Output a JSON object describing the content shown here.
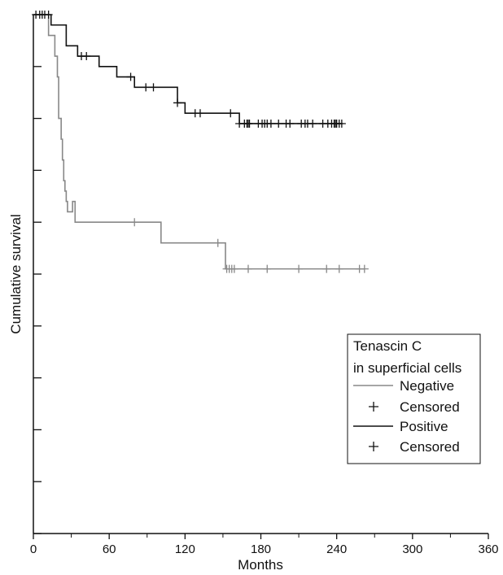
{
  "chart_data": {
    "type": "line",
    "subtype": "kaplan-meier",
    "xlabel": "Months",
    "ylabel": "Cumulative survival",
    "xlim": [
      0,
      360
    ],
    "ylim": [
      0,
      1.0
    ],
    "x_ticks": [
      0,
      60,
      120,
      180,
      240,
      300,
      360
    ],
    "y_ticks": [
      0,
      0.1,
      0.2,
      0.3,
      0.4,
      0.5,
      0.6,
      0.7,
      0.8,
      0.9,
      1.0
    ],
    "y_tick_labels_shown": false,
    "legend": {
      "title_line1": "Tenascin C",
      "title_line2": "in superficial cells",
      "position": "right",
      "entries": [
        {
          "label": "Negative",
          "kind": "line",
          "series": 0
        },
        {
          "label": "Censored",
          "kind": "censor",
          "series": 0
        },
        {
          "label": "Positive",
          "kind": "line",
          "series": 1
        },
        {
          "label": "Censored",
          "kind": "censor",
          "series": 1
        }
      ]
    },
    "series": [
      {
        "name": "Negative",
        "color": "#888888",
        "steps": [
          [
            0,
            1.0
          ],
          [
            12,
            0.96
          ],
          [
            17,
            0.92
          ],
          [
            19,
            0.88
          ],
          [
            20,
            0.8
          ],
          [
            22,
            0.76
          ],
          [
            23,
            0.72
          ],
          [
            24,
            0.68
          ],
          [
            25,
            0.66
          ],
          [
            26,
            0.64
          ],
          [
            27,
            0.62
          ],
          [
            31,
            0.64
          ],
          [
            33,
            0.6
          ],
          [
            33,
            0.6
          ],
          [
            101,
            0.56
          ],
          [
            152,
            0.51
          ]
        ],
        "censored": [
          80,
          146,
          153,
          155,
          157,
          159,
          170,
          185,
          210,
          232,
          242,
          258,
          262
        ]
      },
      {
        "name": "Positive",
        "color": "#111111",
        "steps": [
          [
            0,
            1.0
          ],
          [
            14,
            0.98
          ],
          [
            26,
            0.94
          ],
          [
            35,
            0.92
          ],
          [
            52,
            0.9
          ],
          [
            66,
            0.88
          ],
          [
            80,
            0.86
          ],
          [
            114,
            0.83
          ],
          [
            120,
            0.81
          ],
          [
            163,
            0.79
          ]
        ],
        "censored": [
          2,
          5,
          7,
          9,
          12,
          38,
          42,
          77,
          89,
          95,
          114,
          128,
          132,
          156,
          163,
          167,
          169,
          170,
          171,
          178,
          181,
          183,
          185,
          188,
          194,
          200,
          203,
          212,
          215,
          217,
          221,
          229,
          233,
          236,
          238,
          239,
          240,
          242,
          244
        ]
      }
    ]
  }
}
